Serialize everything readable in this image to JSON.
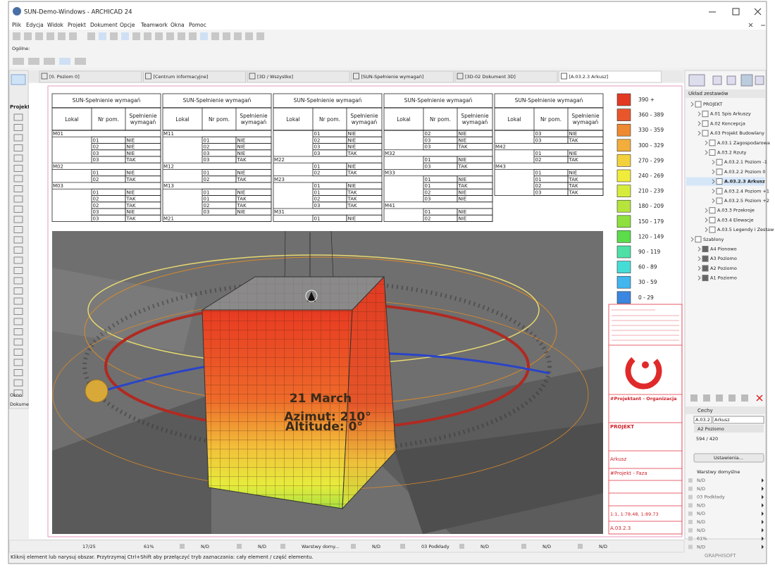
{
  "window": {
    "title": "SUN-Demo-Windows - ARCHICAD 24"
  },
  "menu": [
    "Plik",
    "Edycja",
    "Widok",
    "Projekt",
    "Dokument",
    "Opcje",
    "Teamwork",
    "Okna",
    "Pomoc"
  ],
  "toolbar": {
    "label": "Ogólne:"
  },
  "tabs": [
    "[0. Poziom 0]",
    "[Centrum informacyjne]",
    "[3D / Wszystko]",
    "[SUN-Spełnienie wymagań]",
    "[3D-02 Dokument 3D]",
    "[A.03.2.3 Arkusz]"
  ],
  "left_palette": {
    "section": "Projekt",
    "tabs": [
      "Okno",
      "Dokume"
    ]
  },
  "schedules": [
    {
      "title": "SUN-Spełnienie wymagań",
      "headers": [
        "Lokal",
        "Nr pom.",
        "Spełnienie wymagań"
      ],
      "rows": [
        [
          "M01"
        ],
        [
          "01",
          "NIE"
        ],
        [
          "02",
          "NIE"
        ],
        [
          "03",
          "NIE"
        ],
        [
          "03",
          "TAK"
        ],
        [
          "M02"
        ],
        [
          "01",
          "NIE"
        ],
        [
          "02",
          "TAK"
        ],
        [
          "M03"
        ],
        [
          "01",
          "NIE"
        ],
        [
          "02",
          "TAK"
        ],
        [
          "02",
          "TAK"
        ],
        [
          "03",
          "NIE"
        ],
        [
          "03",
          "TAK"
        ]
      ]
    },
    {
      "title": "SUN-Spełnienie wymagań",
      "headers": [
        "Lokal",
        "Nr pom.",
        "Spełnienie wymagań"
      ],
      "rows": [
        [
          "M11"
        ],
        [
          "01",
          "NIE"
        ],
        [
          "02",
          "NIE"
        ],
        [
          "03",
          "NIE"
        ],
        [
          "03",
          "TAK"
        ],
        [
          "M12"
        ],
        [
          "01",
          "NIE"
        ],
        [
          "02",
          "TAK"
        ],
        [
          "M13"
        ],
        [
          "01",
          "NIE"
        ],
        [
          "01",
          "TAK"
        ],
        [
          "02",
          "TAK"
        ],
        [
          "03",
          "NIE"
        ],
        [
          "M21"
        ]
      ]
    },
    {
      "title": "SUN-Spełnienie wymagań",
      "headers": [
        "Lokal",
        "Nr pom.",
        "Spełnienie wymagań"
      ],
      "rows": [
        [
          "01",
          "NIE"
        ],
        [
          "02",
          "NIE"
        ],
        [
          "03",
          "NIE"
        ],
        [
          "03",
          "TAK"
        ],
        [
          "M22"
        ],
        [
          "01",
          "NIE"
        ],
        [
          "02",
          "TAK"
        ],
        [
          "M23"
        ],
        [
          "01",
          "NIE"
        ],
        [
          "01",
          "TAK"
        ],
        [
          "02",
          "TAK"
        ],
        [
          "03",
          "TAK"
        ],
        [
          "M31"
        ],
        [
          "01",
          "NIE"
        ]
      ]
    },
    {
      "title": "SUN-Spełnienie wymagań",
      "headers": [
        "Lokal",
        "Nr pom.",
        "Spełnienie wymagań"
      ],
      "rows": [
        [
          "02",
          "NIE"
        ],
        [
          "03",
          "NIE"
        ],
        [
          "03",
          "TAK"
        ],
        [
          "M32"
        ],
        [
          "01",
          "NIE"
        ],
        [
          "03",
          "TAK"
        ],
        [
          "M33"
        ],
        [
          "01",
          "NIE"
        ],
        [
          "01",
          "TAK"
        ],
        [
          "02",
          "NIE"
        ],
        [
          "03",
          "NIE"
        ],
        [
          "M41"
        ],
        [
          "01",
          "NIE"
        ],
        [
          "02",
          "NIE"
        ]
      ]
    },
    {
      "title": "SUN-Spełnienie wymagań",
      "headers": [
        "Lokal",
        "Nr pom.",
        "Spełnienie wymagań"
      ],
      "rows": [
        [
          "03",
          "NIE"
        ],
        [
          "03",
          "TAK"
        ],
        [
          "M42"
        ],
        [
          "01",
          "NIE"
        ],
        [
          "02",
          "TAK"
        ],
        [
          "M43"
        ],
        [
          "01",
          "NIE"
        ],
        [
          "01",
          "TAK"
        ],
        [
          "02",
          "TAK"
        ],
        [
          "03",
          "TAK"
        ]
      ]
    }
  ],
  "legend": [
    {
      "label": "390 +",
      "color": "#e23a22"
    },
    {
      "label": "360 - 389",
      "color": "#e8562c"
    },
    {
      "label": "330 - 359",
      "color": "#ee8a32"
    },
    {
      "label": "300 - 329",
      "color": "#f2ad3c"
    },
    {
      "label": "270 - 299",
      "color": "#f3d13c"
    },
    {
      "label": "240 - 269",
      "color": "#f0ec3c"
    },
    {
      "label": "210 - 239",
      "color": "#d6ec3c"
    },
    {
      "label": "180 - 209",
      "color": "#b6e43c"
    },
    {
      "label": "150 - 179",
      "color": "#8ee03e"
    },
    {
      "label": "120 - 149",
      "color": "#5cdc4a"
    },
    {
      "label": "90 - 119",
      "color": "#4ee0a6"
    },
    {
      "label": "60 - 89",
      "color": "#46dcd6"
    },
    {
      "label": "30 - 59",
      "color": "#42b6ee"
    },
    {
      "label": "0 - 29",
      "color": "#3a86e0"
    }
  ],
  "view3d": {
    "date": "21 March",
    "azimuth": "Azimut: 210°",
    "altitude": "Altitude: 0°"
  },
  "title_block": {
    "organization": "#Projektant - Organizacja",
    "project": "PROJEKT",
    "sheet_name": "Arkusz",
    "phase": "#Projekt - Faza",
    "scales": "1:1, 1:78.48, 1:89.73",
    "number": "A.03.2.3"
  },
  "navigator": {
    "header": "Układ zestawów",
    "items": [
      {
        "label": "PROJEKT",
        "level": 0
      },
      {
        "label": "A.01 Spis Arkuszy",
        "level": 1
      },
      {
        "label": "A.02 Koncepcja",
        "level": 1
      },
      {
        "label": "A.03 Projekt Budowlany",
        "level": 1
      },
      {
        "label": "A.03.1 Zagospodarowa",
        "level": 2
      },
      {
        "label": "A.03.2 Rzuty",
        "level": 2
      },
      {
        "label": "A.03.2.1 Poziom -1",
        "level": 3
      },
      {
        "label": "A.03.2.2 Poziom 0",
        "level": 3
      },
      {
        "label": "A.03.2.3 Arkusz",
        "level": 3,
        "selected": true
      },
      {
        "label": "A.03.2.4 Poziom +1",
        "level": 3
      },
      {
        "label": "A.03.2.5 Poziom +2",
        "level": 3
      },
      {
        "label": "A.03.3 Przekroje",
        "level": 2
      },
      {
        "label": "A.03.4 Elewacje",
        "level": 2
      },
      {
        "label": "A.03.5 Legendy i Zestaw",
        "level": 2
      },
      {
        "label": "Szablony",
        "level": 0
      },
      {
        "label": "A4 Pionowo",
        "level": 1
      },
      {
        "label": "A3 Poziomo",
        "level": 1
      },
      {
        "label": "A2 Poziomo",
        "level": 1
      },
      {
        "label": "A1 Poziomo",
        "level": 1
      }
    ]
  },
  "info_box": {
    "title": "Cechy",
    "id": "A.03.2",
    "name": "Arkusz",
    "format": "A2 Poziomo",
    "size": "594 / 420",
    "button": "Ustawienia...",
    "layers": "Warstwy domyślne",
    "rows": [
      "N/D",
      "N/D",
      "03 Podkłady",
      "N/D",
      "N/D",
      "N/D",
      "N/D",
      "61%",
      "N/D"
    ]
  },
  "status_bar": {
    "page": "17/25",
    "zoom": "61%",
    "fields": [
      "N/D",
      "N/D",
      "Warstwy domy...",
      "N/D",
      "03 Podkłady",
      "N/D",
      "N/D",
      "N/D"
    ]
  },
  "message": "Kliknij element lub narysuj obszar. Przytrzymaj Ctrl+Shift aby przełączyć tryb zaznaczania: cały element / część elementu.",
  "brand": "GRAPHISOFT"
}
